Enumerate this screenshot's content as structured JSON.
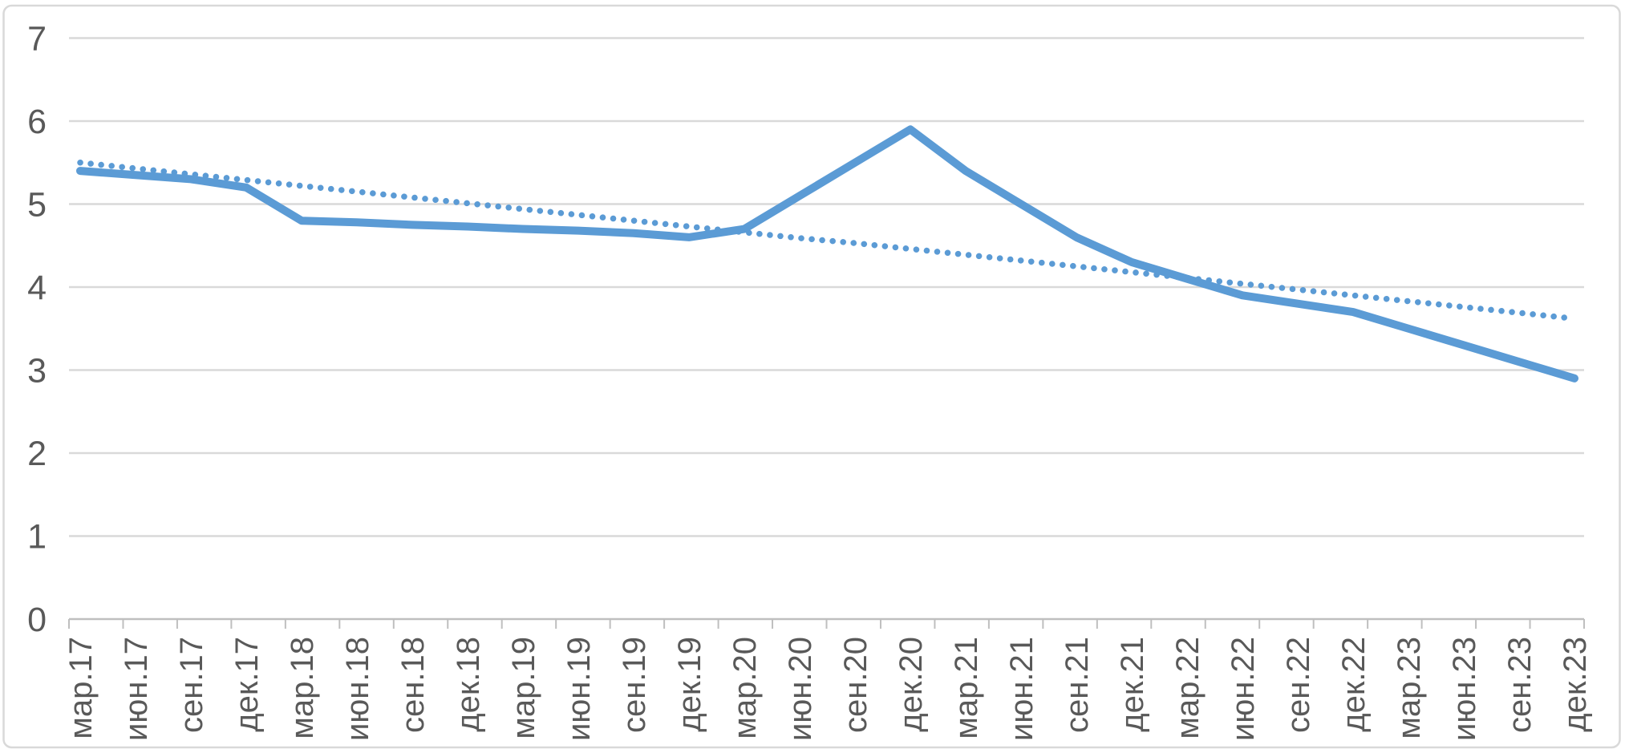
{
  "chart_data": {
    "type": "line",
    "title": "",
    "xlabel": "",
    "ylabel": "",
    "categories": [
      "мар.17",
      "июн.17",
      "сен.17",
      "дек.17",
      "мар.18",
      "июн.18",
      "сен.18",
      "дек.18",
      "мар.19",
      "июн.19",
      "сен.19",
      "дек.19",
      "мар.20",
      "июн.20",
      "сен.20",
      "дек.20",
      "мар.21",
      "июн.21",
      "сен.21",
      "дек.21",
      "мар.22",
      "июн.22",
      "сен.22",
      "дек.22",
      "мар.23",
      "июн.23",
      "сен.23",
      "дек.23"
    ],
    "series": [
      {
        "name": "main-series",
        "style": "solid",
        "values": [
          5.4,
          5.35,
          5.3,
          5.2,
          4.8,
          4.78,
          4.75,
          4.73,
          4.7,
          4.68,
          4.65,
          4.6,
          4.7,
          5.1,
          5.5,
          5.9,
          5.4,
          5.0,
          4.6,
          4.3,
          4.1,
          3.9,
          3.8,
          3.7,
          3.5,
          3.3,
          3.1,
          2.9
        ]
      },
      {
        "name": "linear-trendline",
        "style": "dotted",
        "values": [
          5.5,
          5.43,
          5.36,
          5.29,
          5.22,
          5.15,
          5.08,
          5.01,
          4.94,
          4.87,
          4.8,
          4.73,
          4.66,
          4.59,
          4.53,
          4.46,
          4.39,
          4.32,
          4.25,
          4.18,
          4.11,
          4.04,
          3.97,
          3.9,
          3.83,
          3.76,
          3.69,
          3.62
        ]
      }
    ],
    "ylim": [
      0,
      7
    ],
    "yticks": [
      "0",
      "1",
      "2",
      "3",
      "4",
      "5",
      "6",
      "7"
    ],
    "grid": true,
    "legend": "none",
    "colors": {
      "line": "#5B9BD5",
      "trend": "#5B9BD5",
      "gridline": "#D9D9D9",
      "axis": "#BFBFBF",
      "tick": "#BFBFBF",
      "label": "#595959",
      "frame_border": "#D9D9D9",
      "background": "#FFFFFF"
    }
  }
}
